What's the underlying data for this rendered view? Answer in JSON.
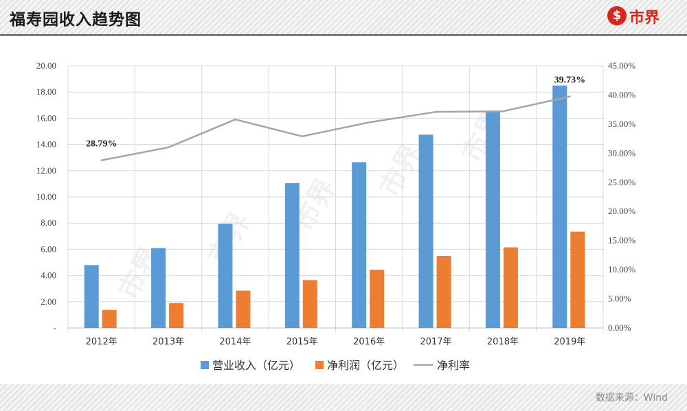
{
  "header": {
    "title": "福寿园收入趋势图"
  },
  "logo": {
    "symbol": "$",
    "text": "市界"
  },
  "footer": {
    "source": "数据来源：Wind"
  },
  "watermark": "市界",
  "colors": {
    "revenue": "#5b9bd5",
    "profit": "#ed7d31",
    "margin": "#a5a5a5",
    "brand": "#d9261c"
  },
  "chart_data": {
    "type": "bar",
    "categories": [
      "2012年",
      "2013年",
      "2014年",
      "2015年",
      "2016年",
      "2017年",
      "2018年",
      "2019年"
    ],
    "series": [
      {
        "name": "营业收入（亿元）",
        "kind": "bar",
        "axis": "left",
        "color": "#5b9bd5",
        "values": [
          4.8,
          6.1,
          7.95,
          11.05,
          12.65,
          14.75,
          16.55,
          18.5
        ]
      },
      {
        "name": "净利润（亿元）",
        "kind": "bar",
        "axis": "left",
        "color": "#ed7d31",
        "values": [
          1.38,
          1.9,
          2.85,
          3.65,
          4.45,
          5.5,
          6.15,
          7.35
        ]
      },
      {
        "name": "净利率",
        "kind": "line",
        "axis": "right",
        "color": "#a5a5a5",
        "values": [
          28.79,
          31.0,
          35.8,
          32.9,
          35.3,
          37.1,
          37.2,
          39.73
        ]
      }
    ],
    "yleft": {
      "min": 0,
      "max": 20,
      "ticks": [
        "-",
        "2.00",
        "4.00",
        "6.00",
        "8.00",
        "10.00",
        "12.00",
        "14.00",
        "16.00",
        "18.00",
        "20.00"
      ]
    },
    "yright": {
      "min": 0,
      "max": 45,
      "ticks": [
        "0.00%",
        "5.00%",
        "10.00%",
        "15.00%",
        "20.00%",
        "25.00%",
        "30.00%",
        "35.00%",
        "40.00%",
        "45.00%"
      ]
    },
    "annotations": [
      {
        "index": 0,
        "text": "28.79%"
      },
      {
        "index": 7,
        "text": "39.73%"
      }
    ],
    "grid": true,
    "legend_position": "bottom"
  }
}
